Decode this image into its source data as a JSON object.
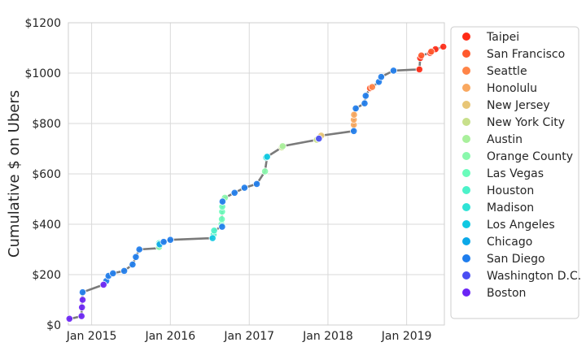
{
  "chart_data": {
    "type": "line",
    "title": "",
    "xlabel": "",
    "ylabel": "Cumulative $ on Ubers",
    "xlim": [
      "2014-09-15",
      "2019-06-25"
    ],
    "ylim": [
      0,
      1200
    ],
    "grid": true,
    "legend_position": "right",
    "x_ticks": [
      "2015-01-01",
      "2016-01-01",
      "2017-01-01",
      "2018-01-01",
      "2019-01-01"
    ],
    "x_tick_labels": [
      "Jan 2015",
      "Jan 2016",
      "Jan 2017",
      "Jan 2018",
      "Jan 2019"
    ],
    "y_ticks": [
      0,
      200,
      400,
      600,
      800,
      1000,
      1200
    ],
    "y_tick_labels": [
      "$0",
      "$200",
      "$400",
      "$600",
      "$800",
      "$1000",
      "$1200"
    ],
    "line_color": "#7a7a7a",
    "series": [
      {
        "name": "Taipei",
        "color": "#ff2a15",
        "points": [
          [
            "2019-03-01",
            1015
          ],
          [
            "2019-03-05",
            1060
          ],
          [
            "2019-04-20",
            1080
          ],
          [
            "2019-05-15",
            1095
          ],
          [
            "2019-06-20",
            1105
          ]
        ]
      },
      {
        "name": "San Francisco",
        "color": "#ff5a2e",
        "points": [
          [
            "2018-07-15",
            940
          ],
          [
            "2019-03-10",
            1070
          ],
          [
            "2019-04-25",
            1085
          ]
        ]
      },
      {
        "name": "Seattle",
        "color": "#ff8447",
        "points": [
          [
            "2018-07-25",
            945
          ]
        ]
      },
      {
        "name": "Honolulu",
        "color": "#f9a860",
        "points": [
          [
            "2018-05-01",
            795
          ],
          [
            "2018-05-01",
            815
          ],
          [
            "2018-05-02",
            835
          ]
        ]
      },
      {
        "name": "New Jersey",
        "color": "#e8c677",
        "points": [
          [
            "2017-12-01",
            752
          ]
        ]
      },
      {
        "name": "New York City",
        "color": "#c8e08b",
        "points": [
          [
            "2017-06-01",
            705
          ],
          [
            "2017-11-10",
            735
          ]
        ]
      },
      {
        "name": "Austin",
        "color": "#a9f09c",
        "points": [
          [
            "2017-06-05",
            710
          ]
        ]
      },
      {
        "name": "Orange County",
        "color": "#8af8ac",
        "points": [
          [
            "2015-11-10",
            310
          ],
          [
            "2016-09-10",
            505
          ],
          [
            "2017-03-15",
            610
          ]
        ]
      },
      {
        "name": "Las Vegas",
        "color": "#6bfcbb",
        "points": [
          [
            "2016-08-25",
            400
          ],
          [
            "2016-08-27",
            420
          ],
          [
            "2016-08-28",
            450
          ],
          [
            "2016-08-29",
            470
          ]
        ]
      },
      {
        "name": "Houston",
        "color": "#4cf2c9",
        "points": [
          [
            "2016-07-20",
            360
          ],
          [
            "2016-07-22",
            375
          ],
          [
            "2015-11-10",
            325
          ]
        ]
      },
      {
        "name": "Madison",
        "color": "#2fe3d6",
        "points": [
          [
            "2017-03-20",
            665
          ]
        ]
      },
      {
        "name": "Los Angeles",
        "color": "#10c8e2",
        "points": [
          [
            "2016-07-15",
            345
          ],
          [
            "2017-03-25",
            668
          ]
        ]
      },
      {
        "name": "Chicago",
        "color": "#0ba8e8",
        "points": [
          [
            "2015-11-12",
            320
          ]
        ]
      },
      {
        "name": "San Diego",
        "color": "#1e7ded",
        "points": [
          [
            "2014-11-20",
            130
          ],
          [
            "2015-03-10",
            175
          ],
          [
            "2015-03-20",
            195
          ],
          [
            "2015-04-10",
            205
          ],
          [
            "2015-06-01",
            215
          ],
          [
            "2015-07-10",
            240
          ],
          [
            "2015-07-25",
            270
          ],
          [
            "2015-08-10",
            300
          ],
          [
            "2015-12-01",
            330
          ],
          [
            "2016-01-01",
            338
          ],
          [
            "2016-08-28",
            390
          ],
          [
            "2016-08-30",
            490
          ],
          [
            "2016-10-25",
            525
          ],
          [
            "2016-12-10",
            545
          ],
          [
            "2017-02-05",
            560
          ],
          [
            "2018-05-01",
            770
          ],
          [
            "2018-05-10",
            860
          ],
          [
            "2018-06-20",
            880
          ],
          [
            "2018-06-25",
            910
          ],
          [
            "2018-08-25",
            965
          ],
          [
            "2018-09-05",
            985
          ],
          [
            "2018-11-01",
            1010
          ]
        ]
      },
      {
        "name": "Washington D.C.",
        "color": "#4a4ef3",
        "points": [
          [
            "2017-11-20",
            740
          ]
        ]
      },
      {
        "name": "Boston",
        "color": "#6a24f5",
        "points": [
          [
            "2014-09-20",
            25
          ],
          [
            "2014-11-15",
            35
          ],
          [
            "2014-11-17",
            70
          ],
          [
            "2014-11-20",
            100
          ],
          [
            "2015-02-25",
            160
          ]
        ]
      }
    ],
    "path": [
      [
        "2014-09-15",
        25
      ],
      [
        "2014-09-25",
        25
      ],
      [
        "2014-11-15",
        35
      ],
      [
        "2014-11-16",
        70
      ],
      [
        "2014-11-18",
        100
      ],
      [
        "2014-11-20",
        130
      ],
      [
        "2015-02-25",
        160
      ],
      [
        "2015-03-10",
        175
      ],
      [
        "2015-03-20",
        195
      ],
      [
        "2015-04-10",
        205
      ],
      [
        "2015-06-01",
        215
      ],
      [
        "2015-07-10",
        240
      ],
      [
        "2015-07-25",
        270
      ],
      [
        "2015-08-10",
        300
      ],
      [
        "2015-11-10",
        305
      ],
      [
        "2015-11-12",
        325
      ],
      [
        "2015-12-01",
        330
      ],
      [
        "2016-01-01",
        338
      ],
      [
        "2016-07-15",
        345
      ],
      [
        "2016-07-20",
        360
      ],
      [
        "2016-07-22",
        375
      ],
      [
        "2016-08-25",
        390
      ],
      [
        "2016-08-27",
        420
      ],
      [
        "2016-08-28",
        450
      ],
      [
        "2016-08-29",
        470
      ],
      [
        "2016-08-30",
        490
      ],
      [
        "2016-09-10",
        505
      ],
      [
        "2016-10-25",
        525
      ],
      [
        "2016-12-10",
        545
      ],
      [
        "2017-02-05",
        560
      ],
      [
        "2017-03-15",
        610
      ],
      [
        "2017-03-25",
        668
      ],
      [
        "2017-06-01",
        705
      ],
      [
        "2017-06-05",
        710
      ],
      [
        "2017-11-10",
        735
      ],
      [
        "2017-11-20",
        740
      ],
      [
        "2017-12-01",
        752
      ],
      [
        "2018-05-01",
        770
      ],
      [
        "2018-05-01",
        795
      ],
      [
        "2018-05-01",
        815
      ],
      [
        "2018-05-02",
        835
      ],
      [
        "2018-05-10",
        860
      ],
      [
        "2018-06-20",
        880
      ],
      [
        "2018-06-25",
        910
      ],
      [
        "2018-07-15",
        940
      ],
      [
        "2018-07-25",
        945
      ],
      [
        "2018-08-25",
        965
      ],
      [
        "2018-09-05",
        985
      ],
      [
        "2018-11-01",
        1010
      ],
      [
        "2019-03-01",
        1015
      ],
      [
        "2019-03-05",
        1060
      ],
      [
        "2019-03-10",
        1070
      ],
      [
        "2019-04-20",
        1080
      ],
      [
        "2019-04-25",
        1085
      ],
      [
        "2019-05-15",
        1095
      ],
      [
        "2019-06-20",
        1105
      ]
    ]
  }
}
